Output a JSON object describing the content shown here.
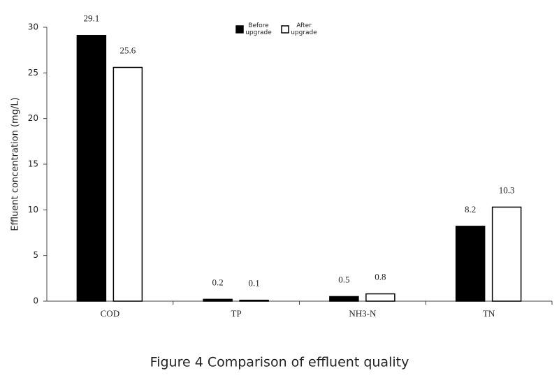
{
  "chart_data": {
    "type": "bar",
    "title": "Figure 4 Comparison of effluent quality",
    "y_label": "Effluent concentration (mg/L)",
    "categories": [
      "COD",
      "TP",
      "NH3-N",
      "TN"
    ],
    "series": [
      {
        "name": "Before upgrade",
        "color": "#000000",
        "values": [
          29.1,
          0.2,
          0.5,
          8.2
        ]
      },
      {
        "name": "After upgrade",
        "color": "#ffffff",
        "values": [
          25.6,
          0.1,
          0.8,
          10.3
        ]
      }
    ],
    "ylim": [
      0,
      30
    ],
    "yticks": [
      0,
      5,
      10,
      15,
      20,
      25,
      30
    ],
    "grid": false,
    "legend": "top"
  }
}
